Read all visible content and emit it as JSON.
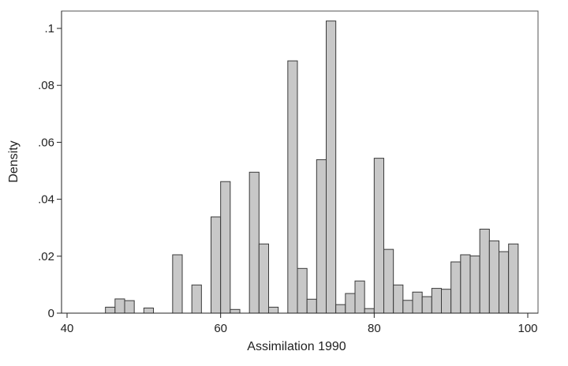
{
  "chart_data": {
    "type": "bar",
    "xlabel": "Assimilation 1990",
    "ylabel": "Density",
    "xlim": [
      40,
      100
    ],
    "ylim": [
      0,
      0.105
    ],
    "x_ticks": [
      40,
      60,
      80,
      100
    ],
    "x_tick_labels": [
      "40",
      "60",
      "80",
      "100"
    ],
    "y_ticks": [
      0,
      0.02,
      0.04,
      0.06,
      0.08,
      0.1
    ],
    "y_tick_labels": [
      "0",
      ".02",
      ".04",
      ".06",
      ".08",
      ".1"
    ],
    "grid": false,
    "legend": "none",
    "bin_width": 1.25,
    "bars": [
      {
        "x0": 45.0,
        "value": 0.0021
      },
      {
        "x0": 46.25,
        "value": 0.005
      },
      {
        "x0": 47.5,
        "value": 0.0044
      },
      {
        "x0": 50.0,
        "value": 0.0018
      },
      {
        "x0": 53.75,
        "value": 0.0205
      },
      {
        "x0": 56.25,
        "value": 0.0099
      },
      {
        "x0": 58.75,
        "value": 0.0338
      },
      {
        "x0": 60.0,
        "value": 0.0462
      },
      {
        "x0": 61.25,
        "value": 0.0013
      },
      {
        "x0": 63.75,
        "value": 0.0495
      },
      {
        "x0": 65.0,
        "value": 0.0243
      },
      {
        "x0": 66.25,
        "value": 0.0021
      },
      {
        "x0": 68.75,
        "value": 0.0886
      },
      {
        "x0": 70.0,
        "value": 0.0157
      },
      {
        "x0": 71.25,
        "value": 0.0049
      },
      {
        "x0": 72.5,
        "value": 0.0539
      },
      {
        "x0": 73.75,
        "value": 0.1026
      },
      {
        "x0": 75.0,
        "value": 0.003
      },
      {
        "x0": 76.25,
        "value": 0.0069
      },
      {
        "x0": 77.5,
        "value": 0.0113
      },
      {
        "x0": 78.75,
        "value": 0.0016
      },
      {
        "x0": 80.0,
        "value": 0.0544
      },
      {
        "x0": 81.25,
        "value": 0.0224
      },
      {
        "x0": 82.5,
        "value": 0.0099
      },
      {
        "x0": 83.75,
        "value": 0.0045
      },
      {
        "x0": 85.0,
        "value": 0.0074
      },
      {
        "x0": 86.25,
        "value": 0.0058
      },
      {
        "x0": 87.5,
        "value": 0.0087
      },
      {
        "x0": 88.75,
        "value": 0.0084
      },
      {
        "x0": 90.0,
        "value": 0.018
      },
      {
        "x0": 91.25,
        "value": 0.0205
      },
      {
        "x0": 92.5,
        "value": 0.0201
      },
      {
        "x0": 93.75,
        "value": 0.0295
      },
      {
        "x0": 95.0,
        "value": 0.0254
      },
      {
        "x0": 96.25,
        "value": 0.0216
      },
      {
        "x0": 97.5,
        "value": 0.0243
      }
    ],
    "colors": {
      "bar_fill": "#c8c8c8",
      "bar_stroke": "#3a3a3a",
      "axis": "#222222",
      "frame": "#555555"
    }
  }
}
